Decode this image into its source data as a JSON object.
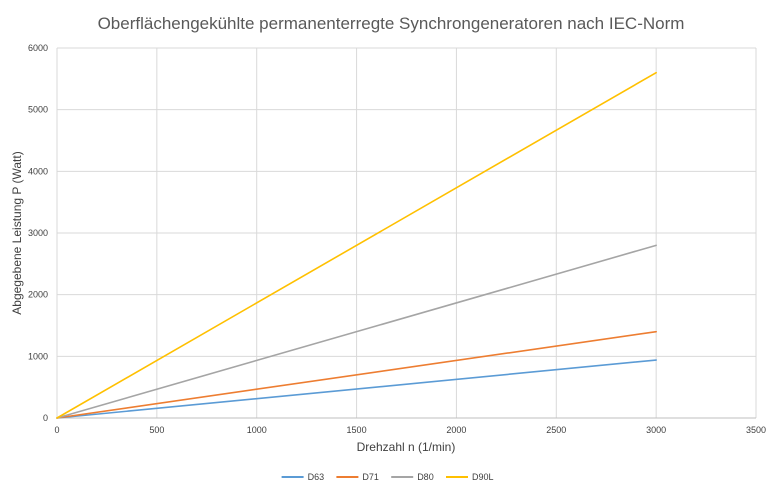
{
  "chart_data": {
    "type": "line",
    "title": "Oberflächengekühlte permanenterregte Synchrongeneratoren nach IEC-Norm",
    "xlabel": "Drehzahl n (1/min)",
    "ylabel": "Abgegebene Leistung P (Watt)",
    "xlim": [
      0,
      3500
    ],
    "ylim": [
      0,
      6000
    ],
    "xticks": [
      "0",
      "500",
      "1000",
      "1500",
      "2000",
      "2500",
      "3000",
      "3500"
    ],
    "yticks": [
      "0",
      "1000",
      "2000",
      "3000",
      "4000",
      "5000",
      "6000"
    ],
    "grid": true,
    "legend_position": "bottom",
    "series": [
      {
        "name": "D63",
        "color": "#5b9bd5",
        "x": [
          0,
          3000
        ],
        "y": [
          0,
          940
        ]
      },
      {
        "name": "D71",
        "color": "#ed7d31",
        "x": [
          0,
          3000
        ],
        "y": [
          0,
          1400
        ]
      },
      {
        "name": "D80",
        "color": "#a5a5a5",
        "x": [
          0,
          3000
        ],
        "y": [
          0,
          2800
        ]
      },
      {
        "name": "D90L",
        "color": "#ffc000",
        "x": [
          0,
          3000
        ],
        "y": [
          0,
          5600
        ]
      }
    ]
  }
}
